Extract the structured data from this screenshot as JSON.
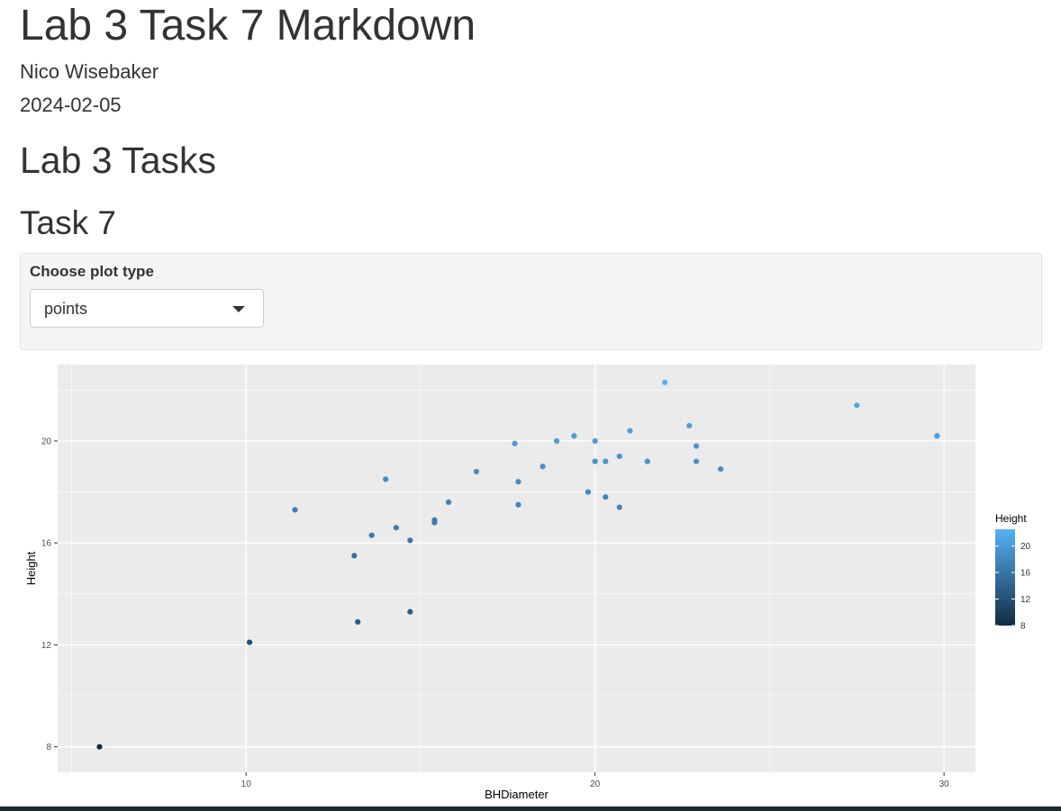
{
  "document": {
    "title": "Lab 3 Task 7 Markdown",
    "author": "Nico Wisebaker",
    "date": "2024-02-05",
    "section_heading": "Lab 3 Tasks",
    "subsection_heading": "Task 7"
  },
  "control": {
    "label": "Choose plot type",
    "selected": "points",
    "caret_icon": "caret-down-icon"
  },
  "chart_data": {
    "type": "scatter",
    "xlabel": "BHDiameter",
    "ylabel": "Height",
    "xlim": [
      4.6,
      30.9
    ],
    "ylim": [
      7.0,
      23.0
    ],
    "x_ticks": [
      10,
      20,
      30
    ],
    "y_ticks": [
      8,
      12,
      16,
      20
    ],
    "grid": true,
    "background": "#ebebeb",
    "legend": {
      "title": "Height",
      "placement": "right",
      "ticks": [
        8,
        12,
        16,
        20
      ],
      "color_low": "#132b43",
      "color_high": "#56b1f7",
      "min": 8,
      "max": 22.5
    },
    "points": [
      {
        "x": 5.8,
        "y": 8.0
      },
      {
        "x": 10.1,
        "y": 12.1
      },
      {
        "x": 11.4,
        "y": 17.3
      },
      {
        "x": 13.1,
        "y": 15.5
      },
      {
        "x": 13.2,
        "y": 12.9
      },
      {
        "x": 13.6,
        "y": 16.3
      },
      {
        "x": 14.0,
        "y": 18.5
      },
      {
        "x": 14.3,
        "y": 16.6
      },
      {
        "x": 14.7,
        "y": 16.1
      },
      {
        "x": 14.7,
        "y": 13.3
      },
      {
        "x": 15.4,
        "y": 16.8
      },
      {
        "x": 15.4,
        "y": 16.9
      },
      {
        "x": 15.8,
        "y": 17.6
      },
      {
        "x": 16.6,
        "y": 18.8
      },
      {
        "x": 17.7,
        "y": 19.9
      },
      {
        "x": 17.8,
        "y": 18.4
      },
      {
        "x": 17.8,
        "y": 17.5
      },
      {
        "x": 18.5,
        "y": 19.0
      },
      {
        "x": 18.9,
        "y": 20.0
      },
      {
        "x": 19.4,
        "y": 20.2
      },
      {
        "x": 19.8,
        "y": 18.0
      },
      {
        "x": 20.0,
        "y": 20.0
      },
      {
        "x": 20.0,
        "y": 19.2
      },
      {
        "x": 20.3,
        "y": 19.2
      },
      {
        "x": 20.3,
        "y": 17.8
      },
      {
        "x": 20.7,
        "y": 19.4
      },
      {
        "x": 20.7,
        "y": 17.4
      },
      {
        "x": 21.0,
        "y": 20.4
      },
      {
        "x": 21.5,
        "y": 19.2
      },
      {
        "x": 22.0,
        "y": 22.3
      },
      {
        "x": 22.7,
        "y": 20.6
      },
      {
        "x": 22.9,
        "y": 19.8
      },
      {
        "x": 22.9,
        "y": 19.2
      },
      {
        "x": 23.6,
        "y": 18.9
      },
      {
        "x": 27.5,
        "y": 21.4
      },
      {
        "x": 29.8,
        "y": 20.2
      }
    ]
  }
}
